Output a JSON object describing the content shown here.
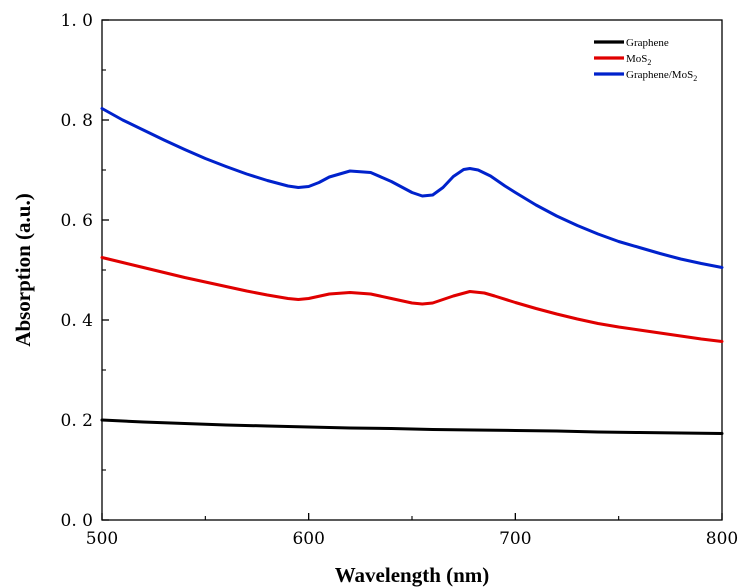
{
  "chart_data": {
    "type": "line",
    "title": "",
    "xlabel": "Wavelength (nm)",
    "ylabel": "Absorption (a.u.)",
    "xlim": [
      500,
      800
    ],
    "ylim": [
      0.0,
      1.0
    ],
    "x_ticks": [
      500,
      600,
      700,
      800
    ],
    "x_tick_labels": [
      "500",
      "600",
      "700",
      "800"
    ],
    "x_minor_step": 50,
    "y_ticks": [
      0.0,
      0.2,
      0.4,
      0.6,
      0.8,
      1.0
    ],
    "y_tick_labels": [
      "0. 0",
      "0. 2",
      "0. 4",
      "0. 6",
      "0. 8",
      "1. 0"
    ],
    "y_minor_step": 0.1,
    "grid": false,
    "legend_position": "top-right",
    "series": [
      {
        "name": "Graphene",
        "legend_label": {
          "main": "Graphene",
          "sub": ""
        },
        "color": "#000000",
        "x": [
          500,
          520,
          540,
          560,
          580,
          600,
          620,
          640,
          660,
          680,
          700,
          720,
          740,
          760,
          780,
          800
        ],
        "y": [
          0.2,
          0.196,
          0.193,
          0.19,
          0.188,
          0.186,
          0.184,
          0.183,
          0.181,
          0.18,
          0.179,
          0.178,
          0.176,
          0.175,
          0.174,
          0.173
        ]
      },
      {
        "name": "MoS2",
        "legend_label": {
          "main": "MoS",
          "sub": "2"
        },
        "color": "#e00000",
        "x": [
          500,
          510,
          520,
          530,
          540,
          550,
          560,
          570,
          580,
          590,
          595,
          600,
          610,
          620,
          630,
          640,
          650,
          655,
          660,
          670,
          678,
          685,
          690,
          700,
          710,
          720,
          730,
          740,
          750,
          760,
          770,
          780,
          790,
          800
        ],
        "y": [
          0.525,
          0.515,
          0.505,
          0.495,
          0.485,
          0.476,
          0.467,
          0.458,
          0.45,
          0.443,
          0.441,
          0.443,
          0.452,
          0.455,
          0.452,
          0.443,
          0.434,
          0.432,
          0.434,
          0.448,
          0.457,
          0.454,
          0.448,
          0.435,
          0.423,
          0.412,
          0.402,
          0.393,
          0.386,
          0.38,
          0.374,
          0.368,
          0.362,
          0.357
        ]
      },
      {
        "name": "Graphene/MoS2",
        "legend_label": {
          "main": "Graphene/MoS",
          "sub": "2"
        },
        "color": "#0022cc",
        "x": [
          500,
          510,
          520,
          530,
          540,
          550,
          560,
          570,
          580,
          590,
          595,
          600,
          605,
          610,
          620,
          630,
          640,
          650,
          655,
          660,
          665,
          670,
          675,
          678,
          682,
          688,
          695,
          700,
          710,
          720,
          730,
          740,
          750,
          760,
          770,
          780,
          790,
          800
        ],
        "y": [
          0.823,
          0.8,
          0.78,
          0.76,
          0.741,
          0.723,
          0.707,
          0.692,
          0.679,
          0.668,
          0.665,
          0.667,
          0.675,
          0.686,
          0.698,
          0.695,
          0.677,
          0.655,
          0.648,
          0.65,
          0.665,
          0.687,
          0.701,
          0.703,
          0.7,
          0.688,
          0.668,
          0.655,
          0.63,
          0.608,
          0.589,
          0.572,
          0.557,
          0.545,
          0.533,
          0.522,
          0.513,
          0.505
        ]
      }
    ]
  }
}
